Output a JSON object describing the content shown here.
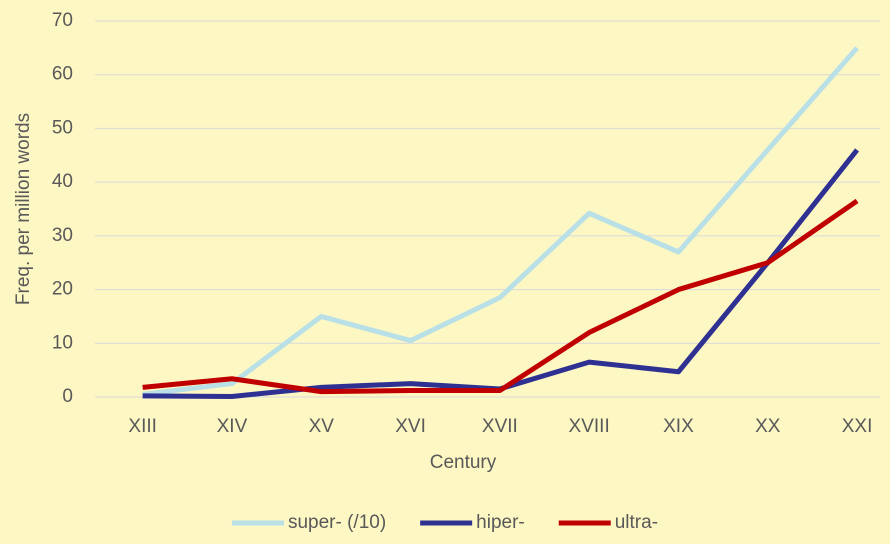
{
  "chart_data": {
    "type": "line",
    "categories": [
      "XIII",
      "XIV",
      "XV",
      "XVI",
      "XVII",
      "XVIII",
      "XIX",
      "XX",
      "XXI"
    ],
    "series": [
      {
        "name": "super- (/10)",
        "color": "#b8e0e6",
        "values": [
          0.5,
          2.5,
          15,
          10.5,
          18.5,
          34.2,
          27,
          46,
          65
        ]
      },
      {
        "name": "hiper-",
        "color": "#2e3192",
        "values": [
          0.2,
          0.1,
          1.8,
          2.5,
          1.5,
          6.5,
          4.7,
          25,
          46
        ]
      },
      {
        "name": "ultra-",
        "color": "#c00000",
        "values": [
          1.8,
          3.4,
          1,
          1.2,
          1.2,
          12,
          20,
          25,
          36.5
        ]
      }
    ],
    "xlabel": "Century",
    "ylabel": "Freq. per million words",
    "ylim": [
      0,
      70
    ],
    "yticks": [
      0,
      10,
      20,
      30,
      40,
      50,
      60,
      70
    ],
    "grid": true,
    "legend": "bottom"
  }
}
